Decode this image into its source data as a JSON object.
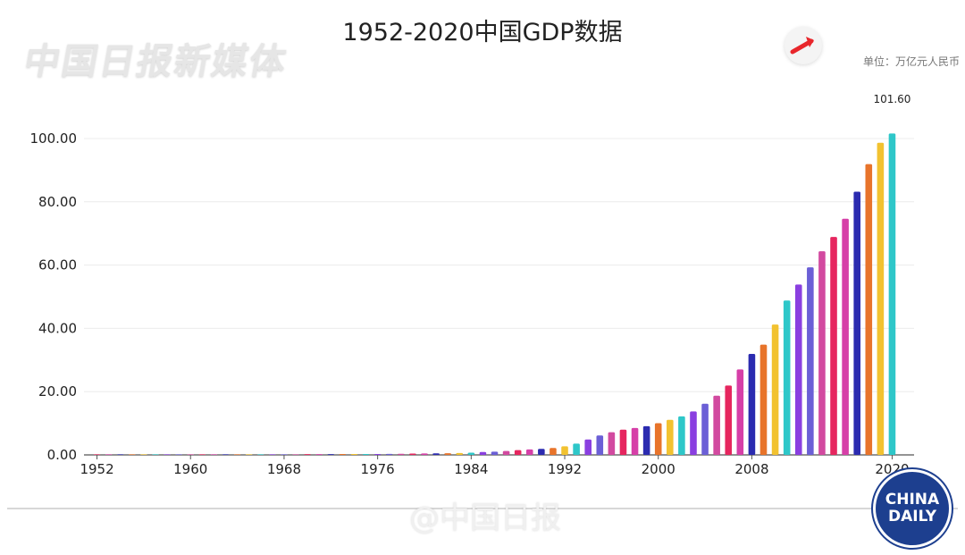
{
  "header": {
    "title": "1952-2020中国GDP数据",
    "watermark_left": "中国日报新媒体",
    "unit": "单位：万亿元人民币",
    "watermark_bottom": "@中国日报",
    "logo_line1": "CHINA",
    "logo_line2": "DAILY",
    "arrow_icon": "arrow-icon"
  },
  "chart_data": {
    "type": "bar",
    "title": "1952-2020中国GDP数据",
    "xlabel": "",
    "ylabel": "",
    "ylim": [
      0,
      100
    ],
    "yticks": [
      "0.00",
      "20.00",
      "40.00",
      "60.00",
      "80.00",
      "100.00"
    ],
    "xticks": [
      "1952",
      "1960",
      "1968",
      "1976",
      "1984",
      "1992",
      "2000",
      "2008",
      "2020"
    ],
    "grid": true,
    "legend": "none",
    "data_labels": [
      {
        "category": "2020",
        "text": "101.60"
      }
    ],
    "categories": [
      "1952",
      "1953",
      "1954",
      "1955",
      "1956",
      "1957",
      "1958",
      "1959",
      "1960",
      "1961",
      "1962",
      "1963",
      "1964",
      "1965",
      "1966",
      "1967",
      "1968",
      "1969",
      "1970",
      "1971",
      "1972",
      "1973",
      "1974",
      "1975",
      "1976",
      "1977",
      "1978",
      "1979",
      "1980",
      "1981",
      "1982",
      "1983",
      "1984",
      "1985",
      "1986",
      "1987",
      "1988",
      "1989",
      "1990",
      "1991",
      "1992",
      "1993",
      "1994",
      "1995",
      "1996",
      "1997",
      "1998",
      "1999",
      "2000",
      "2001",
      "2002",
      "2003",
      "2004",
      "2005",
      "2006",
      "2007",
      "2008",
      "2009",
      "2010",
      "2011",
      "2012",
      "2013",
      "2014",
      "2015",
      "2016",
      "2017",
      "2018",
      "2019",
      "2020"
    ],
    "values": [
      0.07,
      0.08,
      0.09,
      0.09,
      0.1,
      0.11,
      0.13,
      0.14,
      0.15,
      0.12,
      0.12,
      0.12,
      0.15,
      0.17,
      0.19,
      0.18,
      0.17,
      0.19,
      0.23,
      0.24,
      0.25,
      0.27,
      0.28,
      0.3,
      0.3,
      0.32,
      0.37,
      0.41,
      0.46,
      0.49,
      0.54,
      0.6,
      0.72,
      0.91,
      1.04,
      1.22,
      1.52,
      1.72,
      1.89,
      2.2,
      2.72,
      3.57,
      4.86,
      6.13,
      7.18,
      7.97,
      8.52,
      9.06,
      10.03,
      11.09,
      12.17,
      13.74,
      16.18,
      18.73,
      21.94,
      27.01,
      31.92,
      34.85,
      41.21,
      48.79,
      53.86,
      59.3,
      64.36,
      68.89,
      74.64,
      83.2,
      91.93,
      98.65,
      101.6
    ],
    "colors": [
      "#e6265f",
      "#d63fa8",
      "#2b2bb0",
      "#e8742b",
      "#f2c230",
      "#2ec7c9",
      "#8a3fe0",
      "#6b5fd6",
      "#d24aa0"
    ]
  }
}
